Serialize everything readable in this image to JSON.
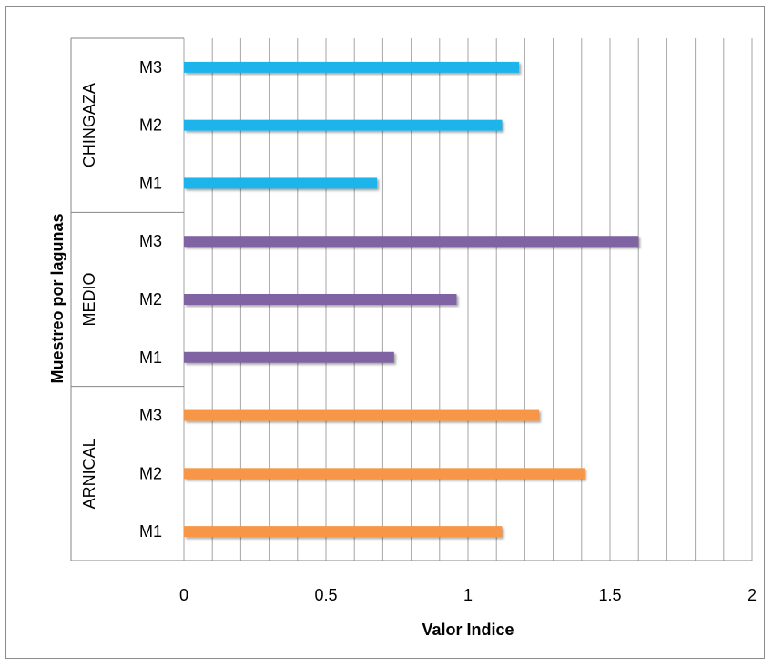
{
  "chart_data": {
    "type": "bar",
    "orientation": "horizontal",
    "xlabel": "Valor Indice",
    "ylabel": "Muestreo por lagunas",
    "xlim": [
      0,
      2
    ],
    "xticks": [
      "0",
      "0.5",
      "1",
      "1.5",
      "2"
    ],
    "grid": "vertical",
    "groups": [
      {
        "name": "CHINGAZA",
        "color": "#1fb4ea",
        "categories": [
          "M3",
          "M2",
          "M1"
        ],
        "values": [
          1.18,
          1.12,
          0.68
        ]
      },
      {
        "name": "MEDIO",
        "color": "#8064a2",
        "categories": [
          "M3",
          "M2",
          "M1"
        ],
        "values": [
          1.6,
          0.96,
          0.74
        ]
      },
      {
        "name": "ARNICAL",
        "color": "#f79646",
        "categories": [
          "M3",
          "M2",
          "M1"
        ],
        "values": [
          1.25,
          1.41,
          1.12
        ]
      }
    ]
  }
}
